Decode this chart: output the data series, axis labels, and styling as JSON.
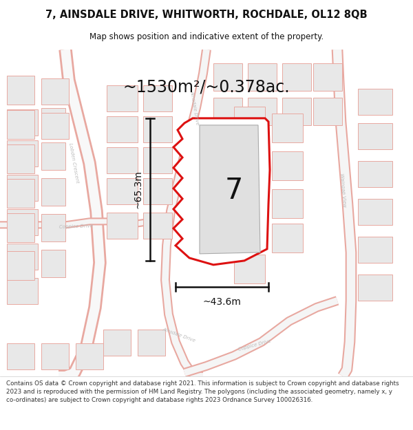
{
  "title_line1": "7, AINSDALE DRIVE, WHITWORTH, ROCHDALE, OL12 8QB",
  "title_line2": "Map shows position and indicative extent of the property.",
  "area_label": "~1530m²/~0.378ac.",
  "number_label": "7",
  "dim_horizontal": "~43.6m",
  "dim_vertical": "~65.3m",
  "footer_text": "Contains OS data © Crown copyright and database right 2021. This information is subject to Crown copyright and database rights 2023 and is reproduced with the permission of HM Land Registry. The polygons (including the associated geometry, namely x, y co-ordinates) are subject to Crown copyright and database rights 2023 Ordnance Survey 100026316.",
  "map_bg": "#ffffff",
  "road_color": "#e8a8a0",
  "road_lw": 1.0,
  "building_fill": "#e8e8e8",
  "building_edge": "#e8a8a0",
  "building_lw": 0.7,
  "prop_fill": "#ffffff",
  "prop_edge": "#dd1111",
  "prop_lw": 2.2,
  "inner_fill": "#e0e0e0",
  "inner_edge": "#aaaaaa",
  "inner_lw": 0.8,
  "dim_color": "#111111",
  "text_color": "#111111",
  "road_label_color": "#bbbbbb",
  "title_bg": "#ffffff",
  "footer_bg": "#ffffff",
  "footer_color": "#333333"
}
